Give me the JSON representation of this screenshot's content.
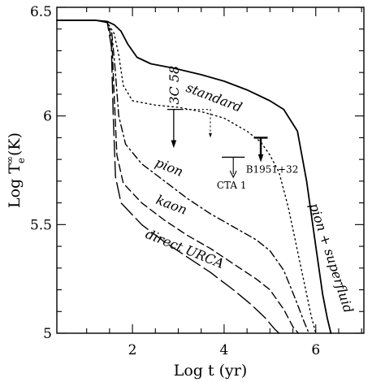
{
  "chart_data": {
    "type": "line",
    "title": "",
    "xlabel": "Log  t  (yr)",
    "ylabel": "Log  T",
    "ylabel_sub": "e",
    "ylabel_sup": "∞",
    "ylabel_suffix": "(K)",
    "xlim": [
      0.35,
      7.05
    ],
    "ylim": [
      5.0,
      6.5
    ],
    "x_ticks": [
      2,
      4,
      6
    ],
    "y_ticks": [
      5,
      5.5,
      6,
      6.5
    ],
    "x_tick_labels": [
      "2",
      "4",
      "6"
    ],
    "y_tick_labels": [
      "5",
      "5.5",
      "6",
      "6.5"
    ],
    "grid": false,
    "legend": "none",
    "series": [
      {
        "name": "standard",
        "style": "solid",
        "x": [
          0.35,
          1.2,
          1.45,
          1.6,
          1.75,
          1.9,
          2.1,
          2.4,
          2.9,
          3.5,
          4.0,
          4.5,
          5.0,
          5.3,
          5.6,
          5.8,
          6.0,
          6.15,
          6.25,
          6.33
        ],
        "y": [
          6.44,
          6.44,
          6.435,
          6.42,
          6.39,
          6.33,
          6.27,
          6.24,
          6.22,
          6.19,
          6.16,
          6.12,
          6.07,
          6.03,
          5.93,
          5.7,
          5.4,
          5.18,
          5.07,
          5.0
        ]
      },
      {
        "name": "pion + superfluid",
        "style": "dotted",
        "x": [
          0.35,
          1.2,
          1.45,
          1.6,
          1.7,
          1.8,
          2.0,
          2.5,
          3.0,
          3.5,
          4.0,
          4.5,
          4.8,
          5.0,
          5.2,
          5.4,
          5.6,
          5.8,
          5.9,
          6.0
        ],
        "y": [
          6.44,
          6.44,
          6.43,
          6.38,
          6.28,
          6.14,
          6.07,
          6.05,
          6.04,
          6.02,
          5.99,
          5.93,
          5.88,
          5.82,
          5.74,
          5.58,
          5.38,
          5.18,
          5.08,
          5.0
        ]
      },
      {
        "name": "pion",
        "style": "dash-dot",
        "x": [
          0.35,
          1.2,
          1.45,
          1.55,
          1.62,
          1.7,
          1.85,
          2.2,
          2.7,
          3.2,
          3.7,
          4.2,
          4.7,
          5.0,
          5.3,
          5.55,
          5.75,
          5.85
        ],
        "y": [
          6.44,
          6.44,
          6.43,
          6.38,
          6.22,
          6.0,
          5.87,
          5.78,
          5.7,
          5.62,
          5.55,
          5.49,
          5.43,
          5.38,
          5.29,
          5.16,
          5.05,
          5.0
        ]
      },
      {
        "name": "kaon",
        "style": "dashed",
        "x": [
          0.35,
          1.2,
          1.45,
          1.55,
          1.6,
          1.66,
          1.8,
          2.2,
          2.7,
          3.2,
          3.7,
          4.2,
          4.7,
          5.0,
          5.3,
          5.5,
          5.62
        ],
        "y": [
          6.44,
          6.44,
          6.43,
          6.35,
          6.1,
          5.82,
          5.69,
          5.6,
          5.52,
          5.45,
          5.39,
          5.32,
          5.25,
          5.2,
          5.11,
          5.03,
          5.0
        ]
      },
      {
        "name": "direct  URCA",
        "style": "long-dash",
        "x": [
          0.35,
          1.2,
          1.45,
          1.54,
          1.58,
          1.63,
          1.75,
          2.2,
          2.7,
          3.2,
          3.7,
          4.2,
          4.6,
          4.9,
          5.1,
          5.2
        ],
        "y": [
          6.44,
          6.44,
          6.43,
          6.32,
          6.0,
          5.72,
          5.6,
          5.5,
          5.42,
          5.35,
          5.28,
          5.2,
          5.13,
          5.07,
          5.02,
          5.0
        ]
      }
    ],
    "curve_labels": [
      "standard",
      "pion",
      "kaon",
      "direct  URCA",
      "pion + superfluid"
    ],
    "observations": [
      {
        "name": "3C 58",
        "type": "upper-limit",
        "x": 2.9,
        "x_range": [
          2.9,
          3.7
        ],
        "y_top": 6.03,
        "y_bottom": 5.89,
        "dotted_bracket": true,
        "y_dotted_low": 5.93,
        "bar": "thin"
      },
      {
        "name": "CTA 1",
        "type": "upper-limit",
        "x": 4.2,
        "x_range": [
          3.95,
          4.45
        ],
        "y_top": 5.81,
        "y_bottom": 5.74,
        "bar": "thin"
      },
      {
        "name": "B1951+32",
        "type": "upper-limit",
        "x": 4.8,
        "x_range": [
          4.65,
          4.95
        ],
        "y_top": 5.9,
        "y_bottom": 5.81,
        "bar": "thick"
      }
    ]
  }
}
